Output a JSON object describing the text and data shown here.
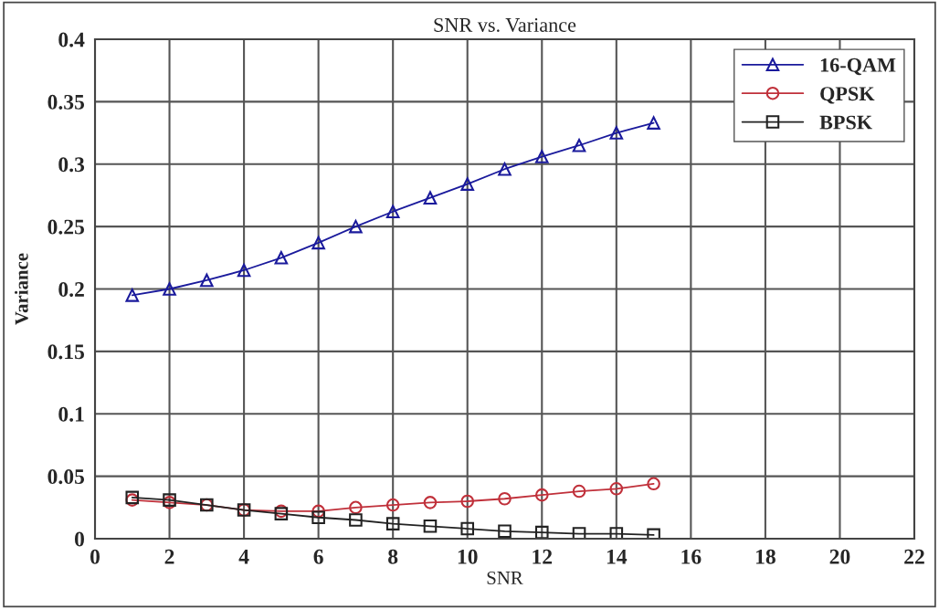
{
  "chart_data": {
    "type": "line",
    "title": "SNR vs. Variance",
    "xlabel": "SNR",
    "ylabel": "Variance",
    "x": [
      1,
      2,
      3,
      4,
      5,
      6,
      7,
      8,
      9,
      10,
      11,
      12,
      13,
      14,
      15
    ],
    "series": [
      {
        "name": "16-QAM",
        "color": "#1a1a9c",
        "marker": "triangle",
        "values": [
          0.195,
          0.2,
          0.207,
          0.215,
          0.225,
          0.237,
          0.25,
          0.262,
          0.273,
          0.284,
          0.296,
          0.306,
          0.315,
          0.325,
          0.333
        ]
      },
      {
        "name": "QPSK",
        "color": "#c0303a",
        "marker": "circle",
        "values": [
          0.031,
          0.029,
          0.027,
          0.023,
          0.022,
          0.022,
          0.025,
          0.027,
          0.029,
          0.03,
          0.032,
          0.035,
          0.038,
          0.04,
          0.044
        ]
      },
      {
        "name": "BPSK",
        "color": "#222222",
        "marker": "square",
        "values": [
          0.033,
          0.031,
          0.027,
          0.023,
          0.02,
          0.017,
          0.015,
          0.012,
          0.01,
          0.008,
          0.006,
          0.005,
          0.004,
          0.004,
          0.003
        ]
      }
    ],
    "xlim": [
      0,
      22
    ],
    "xticks": [
      0,
      2,
      4,
      6,
      8,
      10,
      12,
      14,
      16,
      18,
      20,
      22
    ],
    "ylim": [
      0,
      0.4
    ],
    "yticks": [
      0,
      0.05,
      0.1,
      0.15,
      0.2,
      0.25,
      0.3,
      0.35,
      0.4
    ],
    "grid": true,
    "legend": "top right",
    "line_style": "solid"
  }
}
